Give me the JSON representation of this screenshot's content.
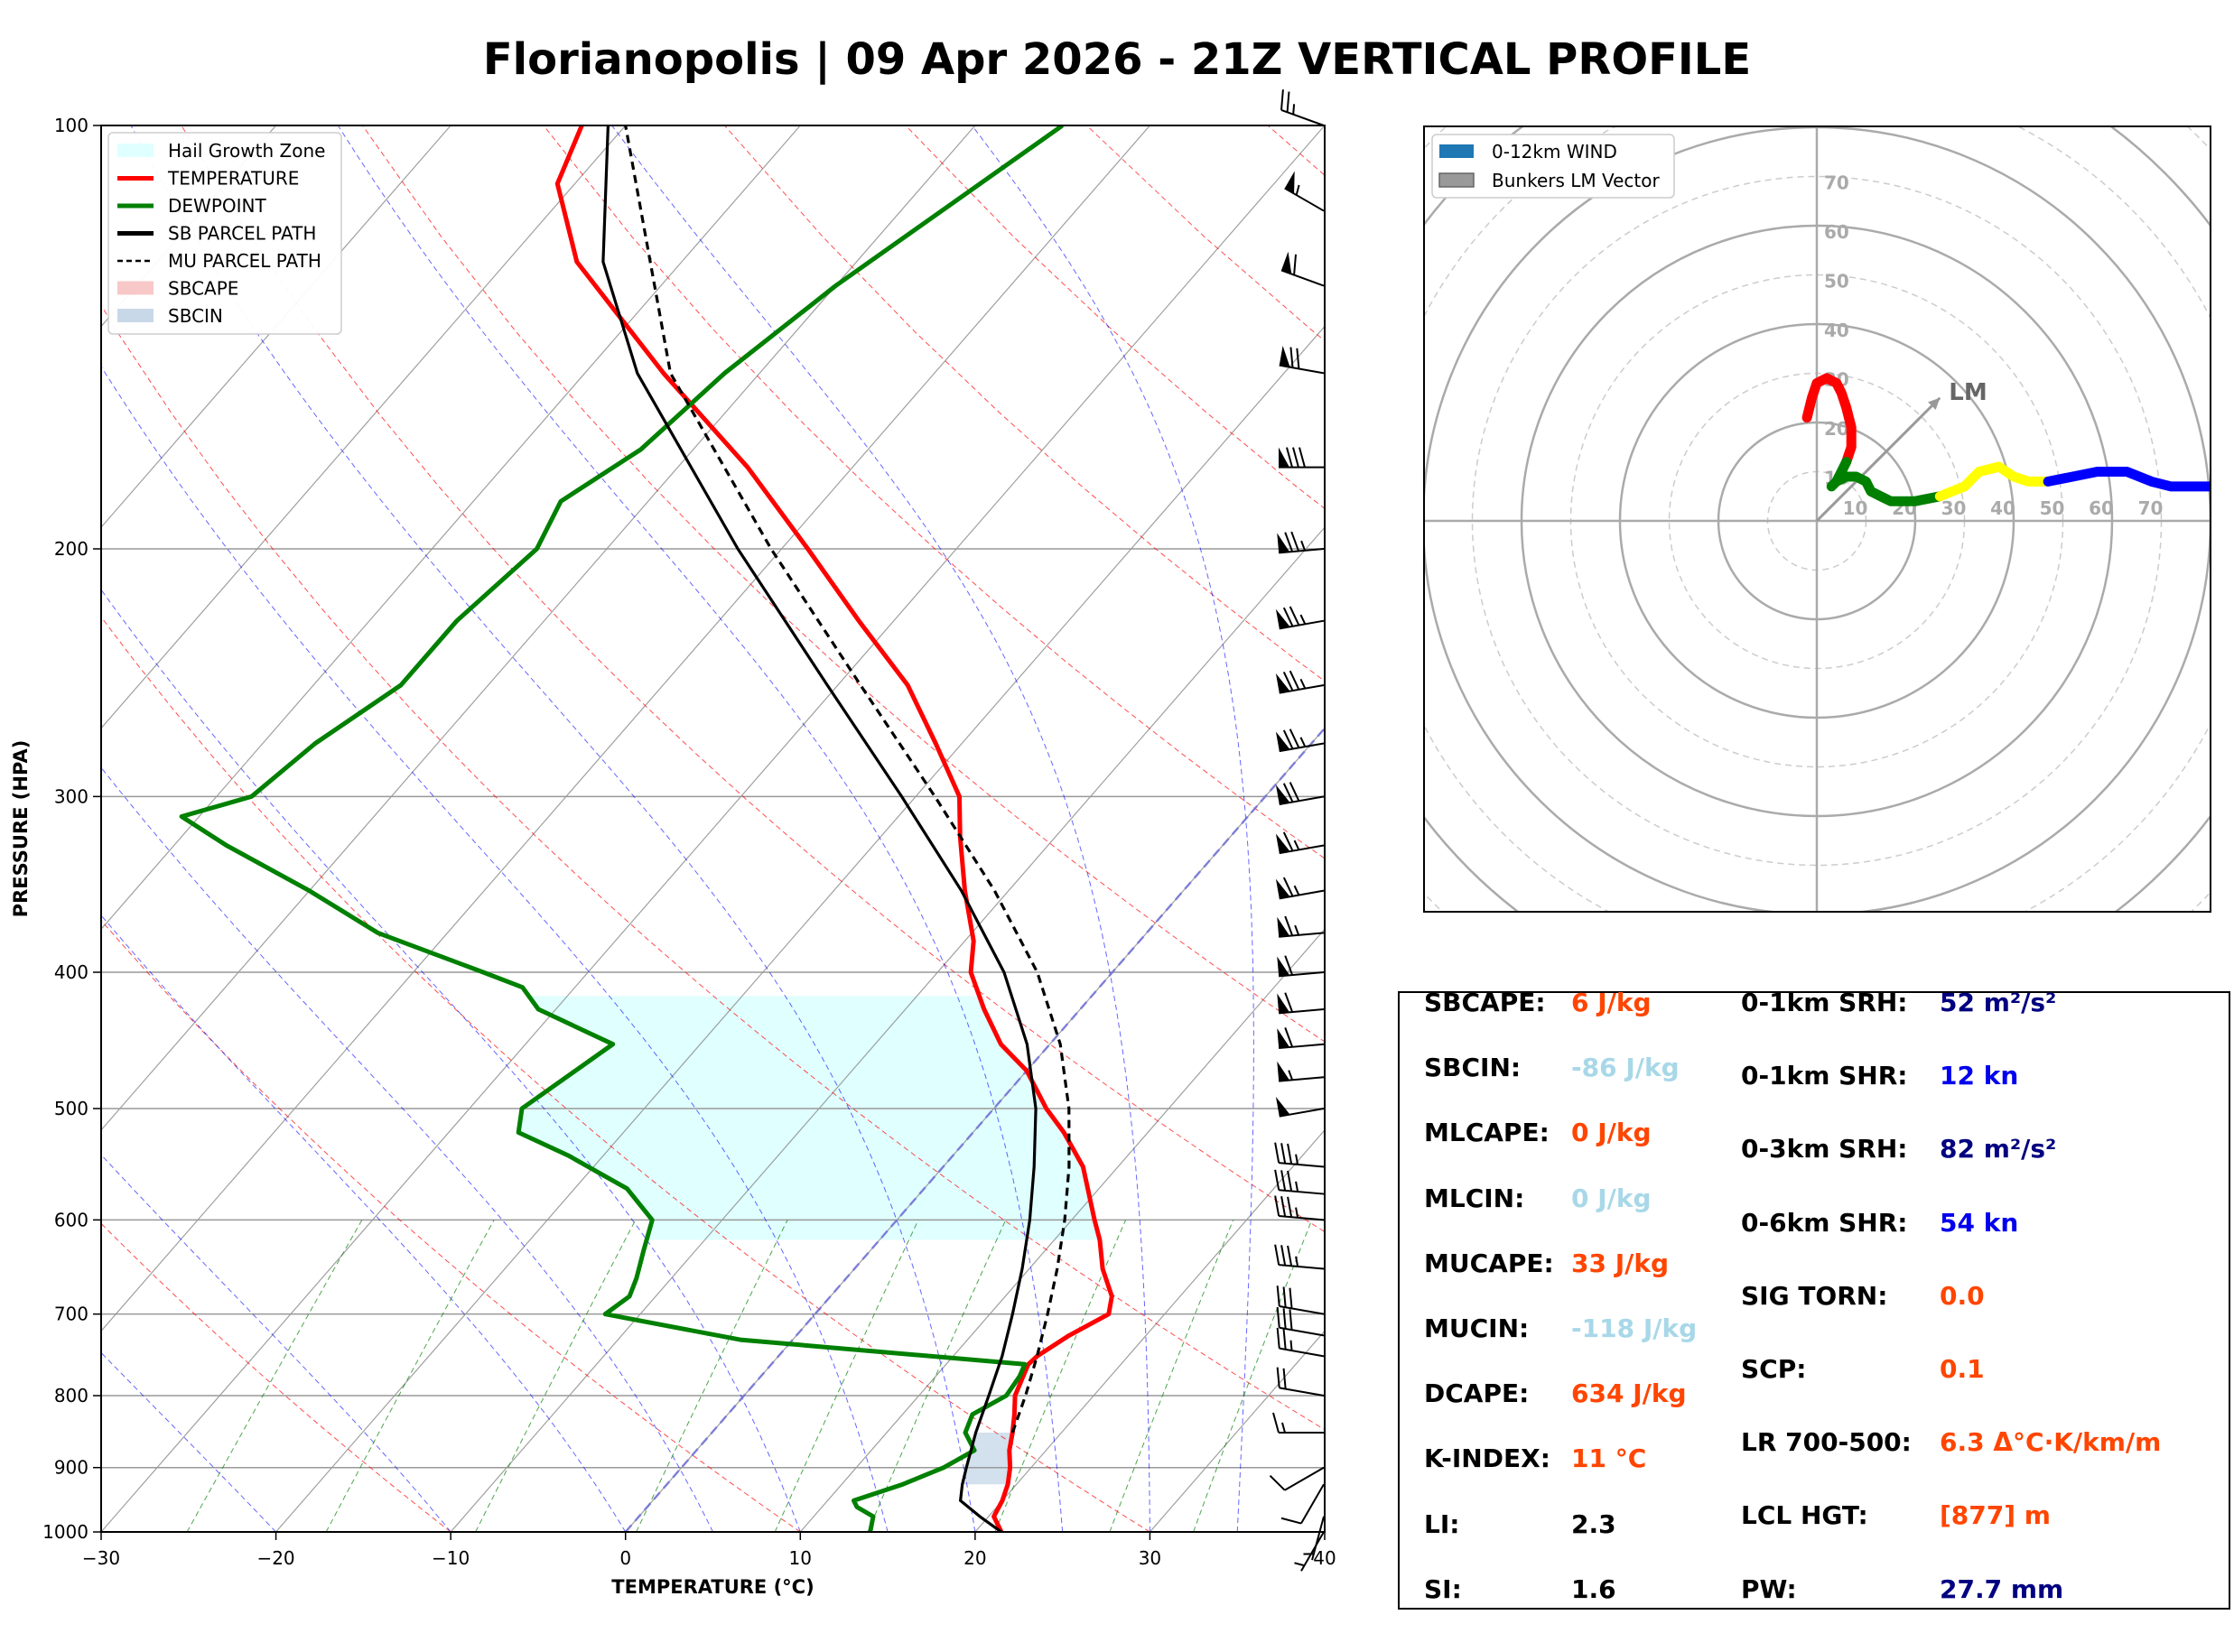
{
  "title": "Florianopolis | 09 Apr 2026 - 21Z VERTICAL PROFILE",
  "colors": {
    "temperature": "#ff0000",
    "dewpoint": "#008000",
    "parcel": "#000000",
    "hail_zone": "#e0ffff",
    "sbcin": "#c8d8e8",
    "isotherm": "#808080",
    "dry_adiabat": "#ff0000",
    "moist_adiabat": "#0000ff",
    "mixing_ratio": "#008000",
    "hodo_segments": [
      "#ff0000",
      "#008000",
      "#ffff00",
      "#0000ff"
    ],
    "value_orange": "#ff4500",
    "value_lightblue": "#a8d8e8",
    "value_navy": "#000080",
    "value_blue": "#0000ee",
    "value_black": "#000000"
  },
  "chart_data": [
    {
      "type": "line",
      "name": "skewt",
      "xlabel": "TEMPERATURE (°C)",
      "ylabel": "PRESSURE (HPA)",
      "xlim": [
        -30,
        40
      ],
      "ylim": [
        1000,
        100
      ],
      "x_ticks": [
        -30,
        -20,
        -10,
        0,
        10,
        20,
        30,
        40
      ],
      "x_tick_labels": [
        "−30",
        "−20",
        "−10",
        "0",
        "10",
        "20",
        "30",
        "40"
      ],
      "y_ticks": [
        1000,
        900,
        800,
        700,
        600,
        500,
        400,
        300,
        200,
        100
      ],
      "skew": 1.0,
      "legend": {
        "position": "top-left",
        "entries": [
          {
            "label": "Hail Growth Zone",
            "kind": "patch",
            "color": "#e0ffff"
          },
          {
            "label": "TEMPERATURE",
            "kind": "line",
            "color": "#ff0000"
          },
          {
            "label": "DEWPOINT",
            "kind": "line",
            "color": "#008000"
          },
          {
            "label": "SB PARCEL PATH",
            "kind": "line",
            "color": "#000000"
          },
          {
            "label": "MU PARCEL PATH",
            "kind": "dash",
            "color": "#000000"
          },
          {
            "label": "SBCAPE",
            "kind": "patch",
            "color": "#f8c8c8"
          },
          {
            "label": "SBCIN",
            "kind": "patch",
            "color": "#c8d8e8"
          }
        ]
      },
      "series": [
        {
          "name": "TEMPERATURE",
          "color": "#ff0000",
          "points": [
            [
              1000,
              21.5
            ],
            [
              975,
              20.3
            ],
            [
              950,
              20
            ],
            [
              925,
              19.5
            ],
            [
              900,
              18.8
            ],
            [
              875,
              17.9
            ],
            [
              850,
              17.2
            ],
            [
              825,
              16.4
            ],
            [
              800,
              15.5
            ],
            [
              775,
              15
            ],
            [
              760,
              14.7
            ],
            [
              750,
              14.8
            ],
            [
              725,
              15.6
            ],
            [
              700,
              16.8
            ],
            [
              680,
              16.1
            ],
            [
              650,
              14.2
            ],
            [
              620,
              12.6
            ],
            [
              600,
              11.3
            ],
            [
              550,
              8
            ],
            [
              520,
              5.2
            ],
            [
              500,
              3
            ],
            [
              470,
              0
            ],
            [
              450,
              -2.8
            ],
            [
              425,
              -5.5
            ],
            [
              400,
              -8.1
            ],
            [
              380,
              -9.5
            ],
            [
              350,
              -12.5
            ],
            [
              320,
              -15.5
            ],
            [
              300,
              -17.5
            ],
            [
              275,
              -21.5
            ],
            [
              250,
              -26
            ],
            [
              225,
              -32
            ],
            [
              200,
              -38.5
            ],
            [
              175,
              -46
            ],
            [
              150,
              -55.5
            ],
            [
              125,
              -66
            ],
            [
              110,
              -71
            ],
            [
              100,
              -72.5
            ]
          ]
        },
        {
          "name": "DEWPOINT",
          "color": "#008000",
          "points": [
            [
              1000,
              14
            ],
            [
              975,
              13.4
            ],
            [
              960,
              12
            ],
            [
              950,
              11.5
            ],
            [
              925,
              13.5
            ],
            [
              900,
              15
            ],
            [
              875,
              15.9
            ],
            [
              850,
              14.5
            ],
            [
              825,
              14
            ],
            [
              800,
              15
            ],
            [
              775,
              14.8
            ],
            [
              760,
              14.5
            ],
            [
              730,
              -3
            ],
            [
              700,
              -12
            ],
            [
              680,
              -11.5
            ],
            [
              660,
              -12
            ],
            [
              630,
              -13
            ],
            [
              600,
              -14
            ],
            [
              570,
              -17
            ],
            [
              540,
              -22
            ],
            [
              520,
              -26
            ],
            [
              500,
              -27
            ],
            [
              450,
              -25
            ],
            [
              425,
              -31
            ],
            [
              410,
              -33
            ],
            [
              400,
              -36
            ],
            [
              375,
              -44
            ],
            [
              350,
              -50
            ],
            [
              325,
              -57
            ],
            [
              310,
              -61
            ],
            [
              300,
              -58
            ],
            [
              275,
              -57
            ],
            [
              250,
              -55
            ],
            [
              225,
              -55
            ],
            [
              200,
              -54
            ],
            [
              185,
              -55
            ],
            [
              170,
              -53
            ],
            [
              150,
              -52
            ],
            [
              130,
              -50
            ],
            [
              100,
              -45
            ]
          ]
        },
        {
          "name": "SB PARCEL PATH",
          "color": "#000000",
          "dash": false,
          "points": [
            [
              1000,
              21.5
            ],
            [
              975,
              19.5
            ],
            [
              950,
              17.6
            ],
            [
              925,
              16.9
            ],
            [
              900,
              16.3
            ],
            [
              850,
              15.1
            ],
            [
              800,
              14
            ],
            [
              750,
              12.8
            ],
            [
              700,
              11.3
            ],
            [
              650,
              9.6
            ],
            [
              600,
              7.6
            ],
            [
              550,
              5.2
            ],
            [
              500,
              2.4
            ],
            [
              450,
              -1.3
            ],
            [
              400,
              -6.2
            ],
            [
              350,
              -12.7
            ],
            [
              300,
              -20.8
            ],
            [
              250,
              -30.6
            ],
            [
              200,
              -42.5
            ],
            [
              150,
              -57
            ],
            [
              125,
              -64.5
            ],
            [
              100,
              -71
            ]
          ]
        },
        {
          "name": "MU PARCEL PATH",
          "color": "#000000",
          "dash": true,
          "points": [
            [
              850,
              17.2
            ],
            [
              800,
              16.1
            ],
            [
              750,
              14.8
            ],
            [
              700,
              13.3
            ],
            [
              650,
              11.6
            ],
            [
              600,
              9.6
            ],
            [
              550,
              7.2
            ],
            [
              500,
              4.3
            ],
            [
              450,
              0.6
            ],
            [
              400,
              -4.3
            ],
            [
              350,
              -10.8
            ],
            [
              300,
              -18.9
            ],
            [
              250,
              -28.7
            ],
            [
              200,
              -40.6
            ],
            [
              150,
              -55.1
            ],
            [
              100,
              -70
            ]
          ]
        }
      ],
      "hail_growth_zone_pressure_hpa": [
        620,
        416
      ],
      "wind_barbs": [
        {
          "p": 1000,
          "dir": 210,
          "spd": 5
        },
        {
          "p": 975,
          "dir": 195,
          "spd": 7
        },
        {
          "p": 925,
          "dir": 210,
          "spd": 10
        },
        {
          "p": 900,
          "dir": 240,
          "spd": 12
        },
        {
          "p": 850,
          "dir": 270,
          "spd": 15
        },
        {
          "p": 800,
          "dir": 280,
          "spd": 20
        },
        {
          "p": 750,
          "dir": 280,
          "spd": 25
        },
        {
          "p": 725,
          "dir": 280,
          "spd": 30
        },
        {
          "p": 700,
          "dir": 280,
          "spd": 30
        },
        {
          "p": 650,
          "dir": 275,
          "spd": 35
        },
        {
          "p": 600,
          "dir": 275,
          "spd": 35
        },
        {
          "p": 575,
          "dir": 275,
          "spd": 35
        },
        {
          "p": 550,
          "dir": 275,
          "spd": 35
        },
        {
          "p": 500,
          "dir": 260,
          "spd": 50
        },
        {
          "p": 475,
          "dir": 265,
          "spd": 55
        },
        {
          "p": 450,
          "dir": 265,
          "spd": 60
        },
        {
          "p": 425,
          "dir": 265,
          "spd": 60
        },
        {
          "p": 400,
          "dir": 265,
          "spd": 60
        },
        {
          "p": 375,
          "dir": 265,
          "spd": 65
        },
        {
          "p": 350,
          "dir": 260,
          "spd": 65
        },
        {
          "p": 325,
          "dir": 260,
          "spd": 65
        },
        {
          "p": 300,
          "dir": 260,
          "spd": 70
        },
        {
          "p": 275,
          "dir": 260,
          "spd": 75
        },
        {
          "p": 250,
          "dir": 260,
          "spd": 75
        },
        {
          "p": 225,
          "dir": 260,
          "spd": 75
        },
        {
          "p": 200,
          "dir": 265,
          "spd": 75
        },
        {
          "p": 175,
          "dir": 270,
          "spd": 80
        },
        {
          "p": 150,
          "dir": 280,
          "spd": 70
        },
        {
          "p": 130,
          "dir": 290,
          "spd": 60
        },
        {
          "p": 115,
          "dir": 300,
          "spd": 55
        },
        {
          "p": 100,
          "dir": 290,
          "spd": 25
        }
      ]
    },
    {
      "type": "scatter",
      "name": "hodograph",
      "title": "",
      "range_kt": 80,
      "ring_labels": [
        "10",
        "20",
        "30",
        "40",
        "50",
        "60",
        "70"
      ],
      "legend": {
        "position": "top-left",
        "entries": [
          {
            "label": "0-12km WIND",
            "kind": "patch",
            "color": "#1f77b4"
          },
          {
            "label": "Bunkers LM Vector",
            "kind": "patch",
            "color": "#999999"
          }
        ]
      },
      "bunkers_lm": {
        "u": 25,
        "v": 25,
        "label": "LM"
      },
      "segments": [
        {
          "color": "#ff0000",
          "points": [
            [
              -2,
              21
            ],
            [
              -1,
              25
            ],
            [
              0,
              28
            ],
            [
              2,
              29
            ],
            [
              4,
              28
            ],
            [
              5,
              26
            ],
            [
              6,
              23
            ],
            [
              7,
              19
            ],
            [
              7,
              15
            ],
            [
              6,
              12
            ]
          ]
        },
        {
          "color": "#008000",
          "points": [
            [
              6,
              12
            ],
            [
              5,
              10
            ],
            [
              4,
              8
            ],
            [
              3,
              7
            ],
            [
              4,
              8
            ],
            [
              6,
              9
            ],
            [
              8,
              9
            ],
            [
              10,
              8
            ],
            [
              11,
              6
            ],
            [
              13,
              5
            ],
            [
              15,
              4
            ],
            [
              20,
              4
            ],
            [
              25,
              5
            ]
          ]
        },
        {
          "color": "#ffff00",
          "points": [
            [
              25,
              5
            ],
            [
              30,
              7
            ],
            [
              33,
              10
            ],
            [
              37,
              11
            ],
            [
              40,
              9
            ],
            [
              43,
              8
            ],
            [
              47,
              8
            ]
          ]
        },
        {
          "color": "#0000ff",
          "points": [
            [
              47,
              8
            ],
            [
              52,
              9
            ],
            [
              57,
              10
            ],
            [
              63,
              10
            ],
            [
              68,
              8
            ],
            [
              72,
              7
            ],
            [
              76,
              7
            ],
            [
              80,
              7
            ]
          ]
        }
      ]
    }
  ],
  "params": {
    "left": [
      {
        "label": "SBCAPE:",
        "value": "6 J/kg",
        "color": "#ff4500"
      },
      {
        "label": "SBCIN:",
        "value": "-86 J/kg",
        "color": "#a8d8e8"
      },
      {
        "label": "MLCAPE:",
        "value": "0 J/kg",
        "color": "#ff4500"
      },
      {
        "label": "MLCIN:",
        "value": "0 J/kg",
        "color": "#a8d8e8"
      },
      {
        "label": "MUCAPE:",
        "value": "33 J/kg",
        "color": "#ff4500"
      },
      {
        "label": "MUCIN:",
        "value": "-118 J/kg",
        "color": "#a8d8e8"
      },
      {
        "label": "DCAPE:",
        "value": "634 J/kg",
        "color": "#ff4500"
      },
      {
        "label": "K-INDEX:",
        "value": "11 °C",
        "color": "#ff4500"
      },
      {
        "label": "LI:",
        "value": "2.3",
        "color": "#000000"
      },
      {
        "label": "SI:",
        "value": "1.6",
        "color": "#000000"
      }
    ],
    "right": [
      {
        "label": "0-1km SRH:",
        "value": "52 m²/s²",
        "color": "#000080"
      },
      {
        "label": "0-1km SHR:",
        "value": "12 kn",
        "color": "#0000ee"
      },
      {
        "label": "0-3km SRH:",
        "value": "82 m²/s²",
        "color": "#000080"
      },
      {
        "label": "0-6km SHR:",
        "value": "54 kn",
        "color": "#0000ee"
      },
      {
        "label": "SIG TORN:",
        "value": "0.0",
        "color": "#ff4500"
      },
      {
        "label": "SCP:",
        "value": "0.1",
        "color": "#ff4500"
      },
      {
        "label": "LR 700-500:",
        "value": "6.3 Δ°C·K/km/m",
        "color": "#ff4500"
      },
      {
        "label": "LCL HGT:",
        "value": "[877] m",
        "color": "#ff4500"
      },
      {
        "label": "PW:",
        "value": "27.7 mm",
        "color": "#000080"
      }
    ]
  }
}
